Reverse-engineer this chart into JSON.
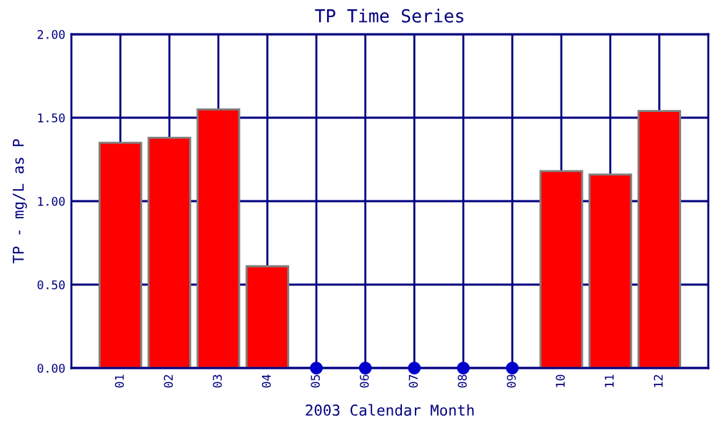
{
  "chart_data": {
    "type": "bar",
    "title": "TP Time Series",
    "xlabel": "2003 Calendar Month",
    "ylabel": "TP - mg/L as P",
    "categories": [
      "01",
      "02",
      "03",
      "04",
      "05",
      "06",
      "07",
      "08",
      "09",
      "10",
      "11",
      "12"
    ],
    "series": [
      {
        "color": "#ff0000",
        "values": [
          1.35,
          1.38,
          1.55,
          0.61,
          null,
          null,
          null,
          null,
          null,
          1.18,
          1.16,
          1.54
        ]
      },
      {
        "type": "scatter",
        "color": "#0000cc",
        "marker": "circle",
        "x": [
          "05",
          "06",
          "07",
          "08",
          "09"
        ],
        "values": [
          0,
          0,
          0,
          0,
          0
        ]
      }
    ],
    "ylim": [
      0,
      2
    ],
    "yticks": [
      {
        "value": 0,
        "label": "0.00"
      },
      {
        "value": 0.5,
        "label": "0.50"
      },
      {
        "value": 1,
        "label": "1.00"
      },
      {
        "value": 1.5,
        "label": "1.50"
      },
      {
        "value": 2,
        "label": "2.00"
      }
    ],
    "grid": true
  }
}
